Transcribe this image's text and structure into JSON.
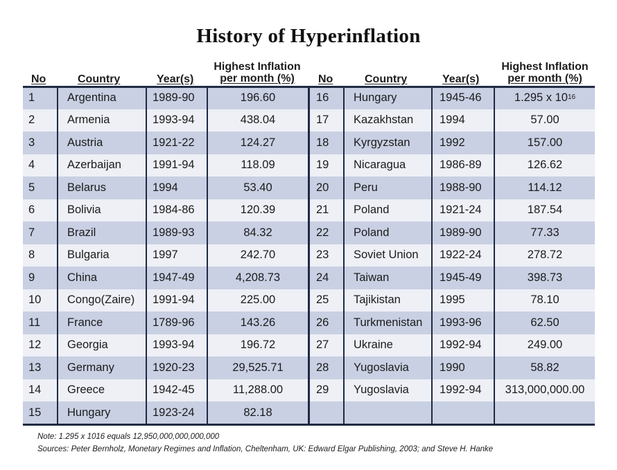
{
  "title": "History of Hyperinflation",
  "headers": {
    "no": "No",
    "country": "Country",
    "years": "Year(s)",
    "inflation_line1": "Highest Inflation",
    "inflation_line2": "per month (%)"
  },
  "left_rows": [
    {
      "no": "1",
      "country": "Argentina",
      "years": "1989-90",
      "inflation": "196.60"
    },
    {
      "no": "2",
      "country": "Armenia",
      "years": "1993-94",
      "inflation": "438.04"
    },
    {
      "no": "3",
      "country": "Austria",
      "years": "1921-22",
      "inflation": "124.27"
    },
    {
      "no": "4",
      "country": "Azerbaijan",
      "years": "1991-94",
      "inflation": "118.09"
    },
    {
      "no": "5",
      "country": "Belarus",
      "years": "1994",
      "inflation": "53.40"
    },
    {
      "no": "6",
      "country": "Bolivia",
      "years": "1984-86",
      "inflation": "120.39"
    },
    {
      "no": "7",
      "country": "Brazil",
      "years": "1989-93",
      "inflation": "84.32"
    },
    {
      "no": "8",
      "country": "Bulgaria",
      "years": "1997",
      "inflation": "242.70"
    },
    {
      "no": "9",
      "country": "China",
      "years": "1947-49",
      "inflation": "4,208.73"
    },
    {
      "no": "10",
      "country": "Congo(Zaire)",
      "years": "1991-94",
      "inflation": "225.00"
    },
    {
      "no": "11",
      "country": "France",
      "years": "1789-96",
      "inflation": "143.26"
    },
    {
      "no": "12",
      "country": "Georgia",
      "years": "1993-94",
      "inflation": "196.72"
    },
    {
      "no": "13",
      "country": "Germany",
      "years": "1920-23",
      "inflation": "29,525.71"
    },
    {
      "no": "14",
      "country": "Greece",
      "years": "1942-45",
      "inflation": "11,288.00"
    },
    {
      "no": "15",
      "country": "Hungary",
      "years": "1923-24",
      "inflation": "82.18"
    }
  ],
  "right_rows": [
    {
      "no": "16",
      "country": "Hungary",
      "years": "1945-46",
      "inflation": "1.295 x 10",
      "exp": "16"
    },
    {
      "no": "17",
      "country": "Kazakhstan",
      "years": "1994",
      "inflation": "57.00"
    },
    {
      "no": "18",
      "country": "Kyrgyzstan",
      "years": "1992",
      "inflation": "157.00"
    },
    {
      "no": "19",
      "country": "Nicaragua",
      "years": "1986-89",
      "inflation": "126.62"
    },
    {
      "no": "20",
      "country": "Peru",
      "years": "1988-90",
      "inflation": "114.12"
    },
    {
      "no": "21",
      "country": "Poland",
      "years": "1921-24",
      "inflation": "187.54"
    },
    {
      "no": "22",
      "country": "Poland",
      "years": "1989-90",
      "inflation": "77.33"
    },
    {
      "no": "23",
      "country": "Soviet Union",
      "years": "1922-24",
      "inflation": "278.72"
    },
    {
      "no": "24",
      "country": "Taiwan",
      "years": "1945-49",
      "inflation": "398.73"
    },
    {
      "no": "25",
      "country": "Tajikistan",
      "years": "1995",
      "inflation": "78.10"
    },
    {
      "no": "26",
      "country": "Turkmenistan",
      "years": "1993-96",
      "inflation": "62.50"
    },
    {
      "no": "27",
      "country": "Ukraine",
      "years": "1992-94",
      "inflation": "249.00"
    },
    {
      "no": "28",
      "country": "Yugoslavia",
      "years": "1990",
      "inflation": "58.82"
    },
    {
      "no": "29",
      "country": "Yugoslavia",
      "years": "1992-94",
      "inflation": "313,000,000.00"
    },
    {
      "no": "",
      "country": "",
      "years": "",
      "inflation": ""
    }
  ],
  "note": "Note: 1.295 x 1016 equals 12,950,000,000,000,000",
  "sources": "Sources: Peter Bernholz, Monetary Regimes and Inflation, Cheltenham, UK: Edward Elgar Publishing, 2003; and Steve H. Hanke",
  "colors": {
    "shade": "#c9d0e3",
    "light": "#eef0f6",
    "rule": "#1f2a44"
  }
}
